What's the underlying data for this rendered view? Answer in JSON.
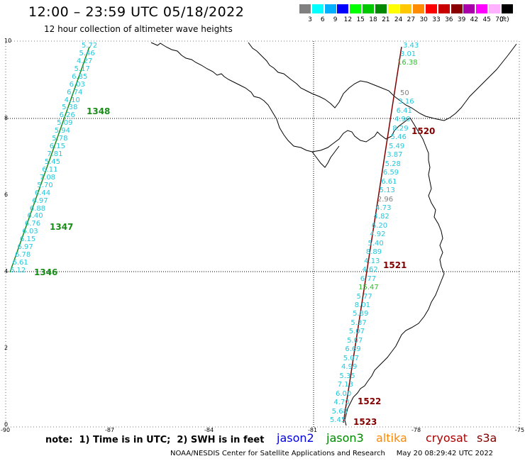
{
  "header": {
    "title": "12:00 – 23:59 UTC 05/18/2022",
    "subtitle": "12 hour collection of altimeter wave heights"
  },
  "legend": {
    "unit": "(ft)",
    "items": [
      {
        "label": "3",
        "color": "#808080"
      },
      {
        "label": "6",
        "color": "#00ffff"
      },
      {
        "label": "9",
        "color": "#00b0ff"
      },
      {
        "label": "12",
        "color": "#0000ff"
      },
      {
        "label": "15",
        "color": "#00ff00"
      },
      {
        "label": "18",
        "color": "#00c800"
      },
      {
        "label": "21",
        "color": "#008800"
      },
      {
        "label": "24",
        "color": "#ffff00"
      },
      {
        "label": "27",
        "color": "#ffc800"
      },
      {
        "label": "30",
        "color": "#ff8c00"
      },
      {
        "label": "33",
        "color": "#ff0000"
      },
      {
        "label": "36",
        "color": "#c80000"
      },
      {
        "label": "39",
        "color": "#880000"
      },
      {
        "label": "42",
        "color": "#aa00aa"
      },
      {
        "label": "45",
        "color": "#ff00ff"
      },
      {
        "label": "70",
        "color": "#ffb0ff"
      },
      {
        "label": "",
        "color": "#000000"
      }
    ]
  },
  "axes": {
    "lat_labels": [
      "10",
      "8",
      "6",
      "4",
      "2",
      "0"
    ],
    "lon_labels": [
      "-90",
      "-87",
      "-84",
      "-81",
      "-78",
      "-75"
    ]
  },
  "colors": {
    "cyan": "#22c8dc",
    "green": "#1a8c1a",
    "gray": "#808080",
    "brightgreen": "#30c030",
    "darkred": "#800000",
    "grid": "#000000"
  },
  "tracks": {
    "west": [
      {
        "v": "5.72",
        "c": "cyan"
      },
      {
        "v": "5.46",
        "c": "cyan"
      },
      {
        "v": "4.27",
        "c": "cyan"
      },
      {
        "v": "5.17",
        "c": "cyan"
      },
      {
        "v": "6.85",
        "c": "cyan"
      },
      {
        "v": "6.03",
        "c": "cyan"
      },
      {
        "v": "6.74",
        "c": "cyan"
      },
      {
        "v": "4.10",
        "c": "cyan"
      },
      {
        "v": "5.38",
        "c": "cyan"
      },
      {
        "v": "6.26",
        "c": "cyan"
      },
      {
        "v": "5.09",
        "c": "cyan"
      },
      {
        "v": "5.94",
        "c": "cyan"
      },
      {
        "v": "5.78",
        "c": "cyan"
      },
      {
        "v": "6.15",
        "c": "cyan"
      },
      {
        "v": "7.81",
        "c": "cyan"
      },
      {
        "v": "5.45",
        "c": "cyan"
      },
      {
        "v": "6.11",
        "c": "cyan"
      },
      {
        "v": "7.08",
        "c": "cyan"
      },
      {
        "v": "5.70",
        "c": "cyan"
      },
      {
        "v": "6.44",
        "c": "cyan"
      },
      {
        "v": "6.97",
        "c": "cyan"
      },
      {
        "v": "6.88",
        "c": "cyan"
      },
      {
        "v": "6.40",
        "c": "cyan"
      },
      {
        "v": "6.76",
        "c": "cyan"
      },
      {
        "v": "6.03",
        "c": "cyan"
      },
      {
        "v": "6.15",
        "c": "cyan"
      },
      {
        "v": "6.97",
        "c": "cyan"
      },
      {
        "v": "6.78",
        "c": "cyan"
      },
      {
        "v": "6.61",
        "c": "cyan"
      },
      {
        "v": "6.12",
        "c": "cyan"
      }
    ],
    "east_top": [
      {
        "v": "3.43",
        "c": "cyan"
      },
      {
        "v": "3.01",
        "c": "cyan"
      },
      {
        "v": "16.38",
        "c": "brightgreen"
      }
    ],
    "east": [
      {
        "v": "50",
        "c": "gray"
      },
      {
        "v": "3.16",
        "c": "cyan"
      },
      {
        "v": "6.41",
        "c": "cyan"
      },
      {
        "v": "4.96",
        "c": "cyan"
      },
      {
        "v": "8.29",
        "c": "cyan"
      },
      {
        "v": "5.46",
        "c": "cyan"
      },
      {
        "v": "5.49",
        "c": "cyan"
      },
      {
        "v": "3.87",
        "c": "cyan"
      },
      {
        "v": "5.28",
        "c": "cyan"
      },
      {
        "v": "6.59",
        "c": "cyan"
      },
      {
        "v": "6.61",
        "c": "cyan"
      },
      {
        "v": "5.13",
        "c": "cyan"
      },
      {
        "v": "2.96",
        "c": "gray"
      },
      {
        "v": "4.73",
        "c": "cyan"
      },
      {
        "v": "4.82",
        "c": "cyan"
      },
      {
        "v": "6.20",
        "c": "cyan"
      },
      {
        "v": "4.92",
        "c": "cyan"
      },
      {
        "v": "5.40",
        "c": "cyan"
      },
      {
        "v": "8.89",
        "c": "cyan"
      },
      {
        "v": "4.13",
        "c": "cyan"
      },
      {
        "v": "4.62",
        "c": "cyan"
      },
      {
        "v": "6.77",
        "c": "cyan"
      },
      {
        "v": "15.47",
        "c": "brightgreen"
      },
      {
        "v": "5.77",
        "c": "cyan"
      },
      {
        "v": "8.01",
        "c": "cyan"
      },
      {
        "v": "5.89",
        "c": "cyan"
      },
      {
        "v": "5.37",
        "c": "cyan"
      },
      {
        "v": "5.07",
        "c": "cyan"
      },
      {
        "v": "5.07",
        "c": "cyan"
      },
      {
        "v": "6.69",
        "c": "cyan"
      },
      {
        "v": "5.07",
        "c": "cyan"
      },
      {
        "v": "4.99",
        "c": "cyan"
      },
      {
        "v": "5.35",
        "c": "cyan"
      },
      {
        "v": "7.13",
        "c": "cyan"
      },
      {
        "v": "6.00",
        "c": "cyan"
      },
      {
        "v": "4.70",
        "c": "cyan"
      },
      {
        "v": "5.68",
        "c": "cyan"
      },
      {
        "v": "5.45",
        "c": "cyan"
      }
    ]
  },
  "passes": [
    {
      "label": "1348",
      "c": "green"
    },
    {
      "label": "1347",
      "c": "green"
    },
    {
      "label": "1346",
      "c": "green"
    },
    {
      "label": "1520",
      "c": "darkred"
    },
    {
      "label": "1521",
      "c": "darkred"
    },
    {
      "label": "1522",
      "c": "darkred"
    },
    {
      "label": "1523",
      "c": "darkred"
    }
  ],
  "footer": {
    "note": "note:  1) Time is in UTC;  2) SWH is in feet",
    "satellites": [
      {
        "label": "jason2",
        "color": "#0000dd"
      },
      {
        "label": "jason3",
        "color": "#008800"
      },
      {
        "label": "altika",
        "color": "#ff8800"
      },
      {
        "label": "cryosat",
        "color": "#aa0000"
      },
      {
        "label": "s3a",
        "color": "#800000"
      }
    ],
    "credit": "NOAA/NESDIS Center for Satellite Applications and Research     May 20 08:29:42 UTC 2022"
  }
}
